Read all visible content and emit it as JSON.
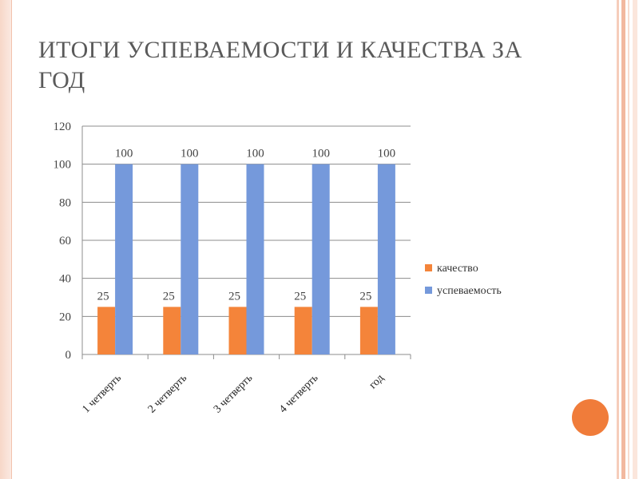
{
  "slide": {
    "title": "ИТОГИ УСПЕВАЕМОСТИ И КАЧЕСТВА ЗА ГОД"
  },
  "colors": {
    "accent": "#f07c3a",
    "border": "#f7d7c8"
  },
  "chart_data": {
    "type": "bar",
    "categories": [
      "1 четверть",
      "2 четверть",
      "3 четверть",
      "4 четверть",
      "год"
    ],
    "series": [
      {
        "name": "качество",
        "values": [
          25,
          25,
          25,
          25,
          25
        ],
        "color": "#f4843a"
      },
      {
        "name": "успеваемость",
        "values": [
          100,
          100,
          100,
          100,
          100
        ],
        "color": "#7599db"
      }
    ],
    "ylim": [
      0,
      120
    ],
    "yticks": [
      0,
      20,
      40,
      60,
      80,
      100,
      120
    ],
    "grid": true,
    "legend": "right",
    "data_labels": true
  }
}
